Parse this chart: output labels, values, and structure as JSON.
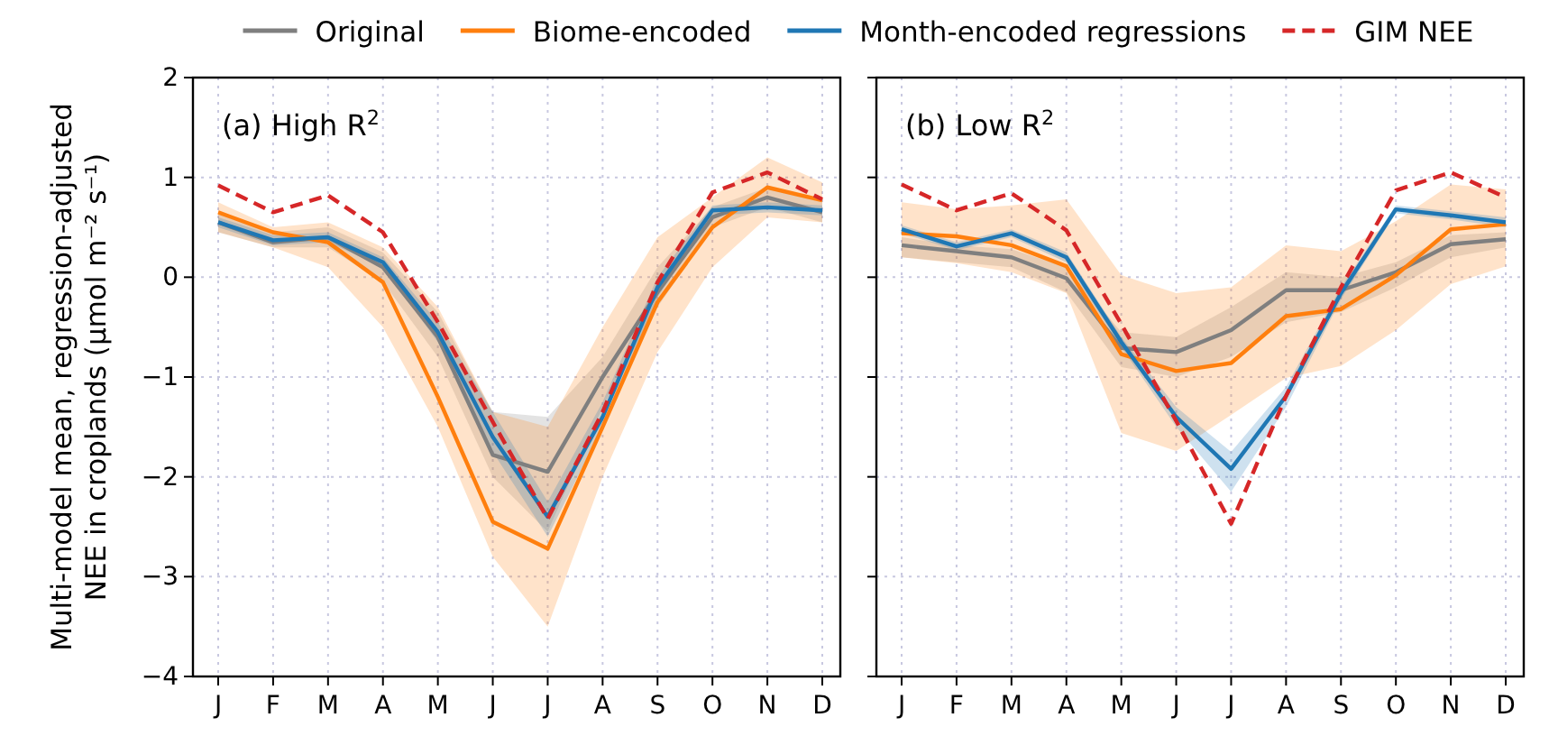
{
  "chart_data": [
    {
      "type": "line",
      "ylabel": "Multi-model mean, regression-adjusted NEE in croplands (μmol m⁻² s⁻¹)",
      "annotations": [
        "(a) High R$^{2}$"
      ],
      "categories": [
        "J",
        "F",
        "M",
        "A",
        "M",
        "J",
        "J",
        "A",
        "S",
        "O",
        "N",
        "D"
      ],
      "ylim": [
        -4,
        2
      ],
      "yticks": [
        -4,
        -3,
        -2,
        -1,
        0,
        1,
        2
      ],
      "grid": true,
      "legend": "top",
      "series": [
        {
          "name": "Original",
          "color": "#7f7f7f",
          "values": [
            0.55,
            0.35,
            0.4,
            0.1,
            -0.6,
            -1.78,
            -1.95,
            -1.0,
            -0.15,
            0.6,
            0.8,
            0.65
          ],
          "lower": [
            0.45,
            0.3,
            0.3,
            -0.05,
            -0.8,
            -2.0,
            -2.55,
            -1.3,
            -0.3,
            0.5,
            0.7,
            0.55
          ],
          "upper": [
            0.65,
            0.45,
            0.5,
            0.25,
            -0.35,
            -1.35,
            -1.4,
            -0.8,
            0.1,
            0.7,
            0.9,
            0.75
          ]
        },
        {
          "name": "Biome-encoded",
          "color": "#ff7f0e",
          "values": [
            0.65,
            0.45,
            0.35,
            -0.05,
            -1.2,
            -2.45,
            -2.72,
            -1.5,
            -0.25,
            0.5,
            0.9,
            0.77
          ],
          "lower": [
            0.45,
            0.3,
            0.1,
            -0.5,
            -1.5,
            -2.8,
            -3.5,
            -2.0,
            -0.75,
            0.1,
            0.6,
            0.55
          ],
          "upper": [
            0.75,
            0.5,
            0.55,
            0.3,
            -0.3,
            -1.35,
            -1.5,
            -0.5,
            0.4,
            0.8,
            1.2,
            0.95
          ]
        },
        {
          "name": "Month-encoded regressions",
          "color": "#1f77b4",
          "values": [
            0.55,
            0.37,
            0.4,
            0.15,
            -0.55,
            -1.6,
            -2.4,
            -1.4,
            -0.1,
            0.67,
            0.7,
            0.67
          ],
          "lower": [
            0.5,
            0.32,
            0.35,
            0.1,
            -0.65,
            -1.75,
            -2.6,
            -1.5,
            -0.2,
            0.62,
            0.65,
            0.62
          ],
          "upper": [
            0.6,
            0.42,
            0.45,
            0.2,
            -0.45,
            -1.35,
            -2.25,
            -1.25,
            0.0,
            0.72,
            0.75,
            0.72
          ]
        },
        {
          "name": "GIM NEE",
          "color": "#d62728",
          "line_style": "dashed",
          "values": [
            0.92,
            0.65,
            0.82,
            0.45,
            -0.45,
            -1.45,
            -2.42,
            -1.35,
            -0.05,
            0.85,
            1.05,
            0.78
          ]
        }
      ]
    },
    {
      "type": "line",
      "annotations": [
        "(b) Low R$^{2}$"
      ],
      "categories": [
        "J",
        "F",
        "M",
        "A",
        "M",
        "J",
        "J",
        "A",
        "S",
        "O",
        "N",
        "D"
      ],
      "ylim": [
        -4,
        2
      ],
      "yticks": [
        -4,
        -3,
        -2,
        -1,
        0,
        1,
        2
      ],
      "grid": true,
      "tick_labels": "x",
      "series": [
        {
          "color": "#7f7f7f",
          "values": [
            0.32,
            0.26,
            0.2,
            -0.01,
            -0.71,
            -0.75,
            -0.53,
            -0.13,
            -0.13,
            0.05,
            0.33,
            0.38
          ],
          "lower": [
            0.2,
            0.15,
            0.1,
            -0.15,
            -0.9,
            -1.0,
            -0.8,
            -0.45,
            -0.35,
            -0.1,
            0.2,
            0.3
          ],
          "upper": [
            0.4,
            0.32,
            0.28,
            0.1,
            -0.55,
            -0.6,
            -0.3,
            0.05,
            0.0,
            0.15,
            0.42,
            0.45
          ]
        },
        {
          "color": "#ff7f0e",
          "values": [
            0.44,
            0.41,
            0.32,
            0.11,
            -0.77,
            -0.94,
            -0.86,
            -0.39,
            -0.32,
            0.02,
            0.48,
            0.53
          ],
          "lower": [
            0.2,
            0.14,
            0.05,
            -0.16,
            -1.56,
            -1.74,
            -1.38,
            -1.01,
            -0.89,
            -0.53,
            -0.07,
            0.11
          ],
          "upper": [
            0.75,
            0.68,
            0.72,
            0.78,
            0.02,
            -0.16,
            -0.1,
            0.32,
            0.26,
            0.56,
            0.93,
            0.88
          ]
        },
        {
          "color": "#1f77b4",
          "values": [
            0.48,
            0.31,
            0.44,
            0.2,
            -0.65,
            -1.4,
            -1.92,
            -1.19,
            -0.16,
            0.68,
            0.62,
            0.55
          ],
          "lower": [
            0.44,
            0.27,
            0.4,
            0.15,
            -0.7,
            -1.5,
            -2.15,
            -1.3,
            -0.22,
            0.64,
            0.58,
            0.5
          ],
          "upper": [
            0.52,
            0.35,
            0.48,
            0.25,
            -0.6,
            -1.3,
            -1.75,
            -1.1,
            -0.1,
            0.72,
            0.66,
            0.6
          ]
        },
        {
          "color": "#d62728",
          "line_style": "dashed",
          "values": [
            0.93,
            0.67,
            0.84,
            0.47,
            -0.47,
            -1.44,
            -2.47,
            -1.19,
            -0.1,
            0.87,
            1.05,
            0.8
          ]
        }
      ]
    }
  ]
}
